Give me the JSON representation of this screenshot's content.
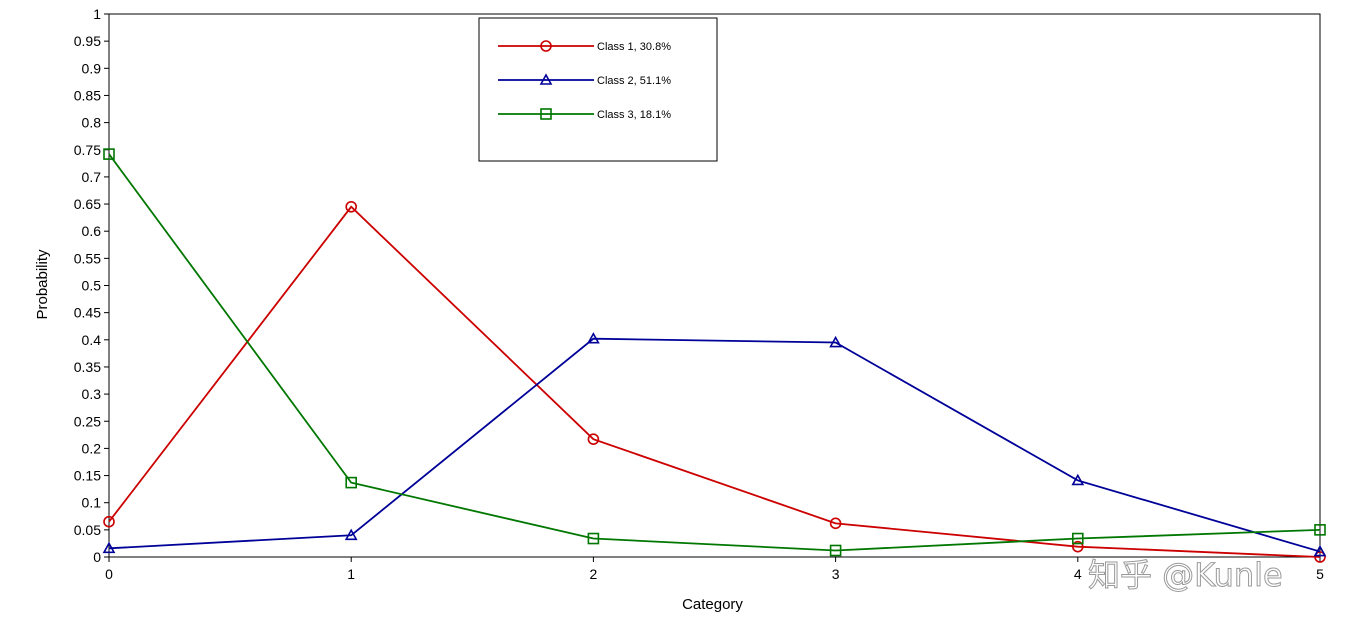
{
  "chart_data": {
    "type": "line",
    "xlabel": "Category",
    "ylabel": "Probability",
    "xlim": [
      0,
      5
    ],
    "ylim": [
      0,
      1
    ],
    "x": [
      0,
      1,
      2,
      3,
      4,
      5
    ],
    "x_ticks": [
      "0",
      "1",
      "2",
      "3",
      "4",
      "5"
    ],
    "y_ticks": [
      "0",
      "0.05",
      "0.1",
      "0.15",
      "0.2",
      "0.25",
      "0.3",
      "0.35",
      "0.4",
      "0.45",
      "0.5",
      "0.55",
      "0.6",
      "0.65",
      "0.7",
      "0.75",
      "0.8",
      "0.85",
      "0.9",
      "0.95",
      "1"
    ],
    "grid": false,
    "legend_position": "top-center",
    "series": [
      {
        "name": "Class 1, 30.8%",
        "color": "#cc0000",
        "marker": "circle",
        "values": [
          0.065,
          0.645,
          0.217,
          0.062,
          0.019,
          0.0
        ]
      },
      {
        "name": "Class 2, 51.1%",
        "color": "#000099",
        "marker": "triangle",
        "values": [
          0.016,
          0.04,
          0.402,
          0.395,
          0.141,
          0.01
        ]
      },
      {
        "name": "Class 3, 18.1%",
        "color": "#007700",
        "marker": "square",
        "values": [
          0.742,
          0.137,
          0.034,
          0.012,
          0.034,
          0.05
        ]
      }
    ]
  },
  "watermark": "知乎 @Kunle"
}
